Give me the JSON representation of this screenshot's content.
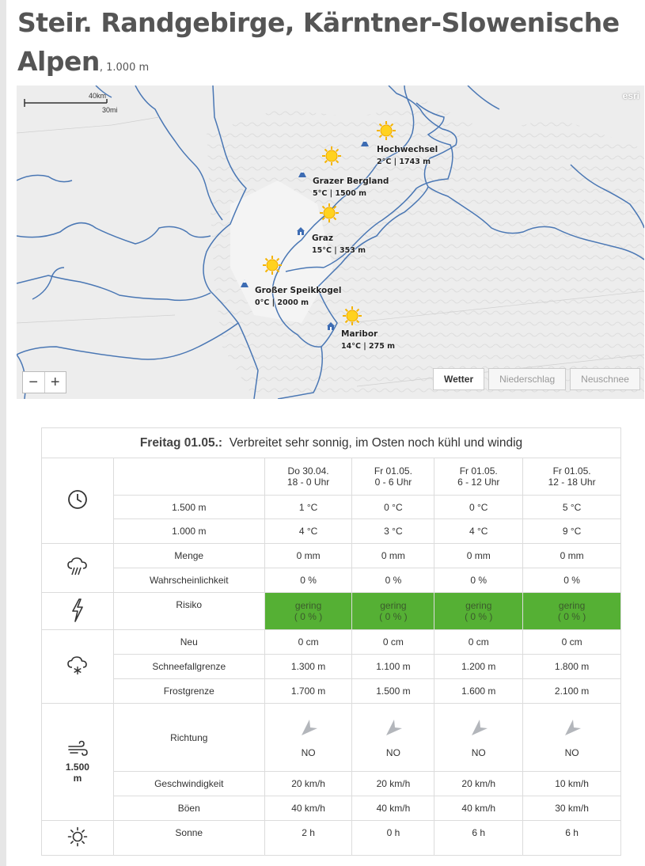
{
  "page": {
    "title": "Steir. Randgebirge, Kärntner-Slowenische Alpen",
    "elevation": ", 1.000 m"
  },
  "map": {
    "scale_km": "40km",
    "scale_mi": "30mi",
    "attribution": "esri",
    "zoom_out": "−",
    "zoom_in": "+",
    "tabs": [
      "Wetter",
      "Niederschlag",
      "Neuschnee"
    ],
    "active_tab": "Wetter",
    "locations": [
      {
        "name": "Hochwechsel",
        "info": "2°C | 1743 m",
        "type": "mountain"
      },
      {
        "name": "Grazer Bergland",
        "info": "5°C | 1500 m",
        "type": "mountain"
      },
      {
        "name": "Graz",
        "info": "15°C | 353 m",
        "type": "city"
      },
      {
        "name": "Großer Speikkogel",
        "info": "0°C | 2000 m",
        "type": "mountain"
      },
      {
        "name": "Maribor",
        "info": "14°C | 275 m",
        "type": "city"
      }
    ]
  },
  "forecast": {
    "day": "Freitag 01.05.:",
    "summary": "Verbreitet sehr sonnig, im Osten noch kühl und windig",
    "columns": [
      {
        "date": "Do 30.04.",
        "time": "18 - 0 Uhr"
      },
      {
        "date": "Fr 01.05.",
        "time": "0 - 6 Uhr"
      },
      {
        "date": "Fr 01.05.",
        "time": "6 - 12 Uhr"
      },
      {
        "date": "Fr 01.05.",
        "time": "12 - 18 Uhr"
      }
    ],
    "temp": {
      "icon": "clock-icon",
      "rows": [
        {
          "label": "1.500 m",
          "values": [
            "1 °C",
            "0 °C",
            "0 °C",
            "5 °C"
          ]
        },
        {
          "label": "1.000 m",
          "values": [
            "4 °C",
            "3 °C",
            "4 °C",
            "9 °C"
          ]
        }
      ]
    },
    "precip": {
      "icon": "rain-cloud-icon",
      "rows": [
        {
          "label": "Menge",
          "values": [
            "0 mm",
            "0 mm",
            "0 mm",
            "0 mm"
          ]
        },
        {
          "label": "Wahrscheinlichkeit",
          "values": [
            "0 %",
            "0 %",
            "0 %",
            "0 %"
          ]
        }
      ]
    },
    "thunder": {
      "icon": "lightning-icon",
      "label": "Risiko",
      "values": [
        {
          "level": "gering",
          "pct": "( 0 % )"
        },
        {
          "level": "gering",
          "pct": "( 0 % )"
        },
        {
          "level": "gering",
          "pct": "( 0 % )"
        },
        {
          "level": "gering",
          "pct": "( 0 % )"
        }
      ],
      "color": "#55b034"
    },
    "snow": {
      "icon": "snow-cloud-icon",
      "rows": [
        {
          "label": "Neu",
          "values": [
            "0 cm",
            "0 cm",
            "0 cm",
            "0 cm"
          ]
        },
        {
          "label": "Schneefallgrenze",
          "values": [
            "1.300 m",
            "1.100 m",
            "1.200 m",
            "1.800 m"
          ]
        },
        {
          "label": "Frostgrenze",
          "values": [
            "1.700 m",
            "1.500 m",
            "1.600 m",
            "2.100 m"
          ]
        }
      ]
    },
    "wind": {
      "icon": "wind-icon",
      "level": "1.500",
      "unit": "m",
      "direction_label": "Richtung",
      "directions": [
        "NO",
        "NO",
        "NO",
        "NO"
      ],
      "rows": [
        {
          "label": "Geschwindigkeit",
          "values": [
            "20 km/h",
            "20 km/h",
            "20 km/h",
            "10 km/h"
          ]
        },
        {
          "label": "Böen",
          "values": [
            "40 km/h",
            "40 km/h",
            "40 km/h",
            "30 km/h"
          ]
        }
      ]
    },
    "sun": {
      "icon": "sun-icon",
      "label": "Sonne",
      "values": [
        "2 h",
        "0 h",
        "6 h",
        "6 h"
      ]
    }
  }
}
